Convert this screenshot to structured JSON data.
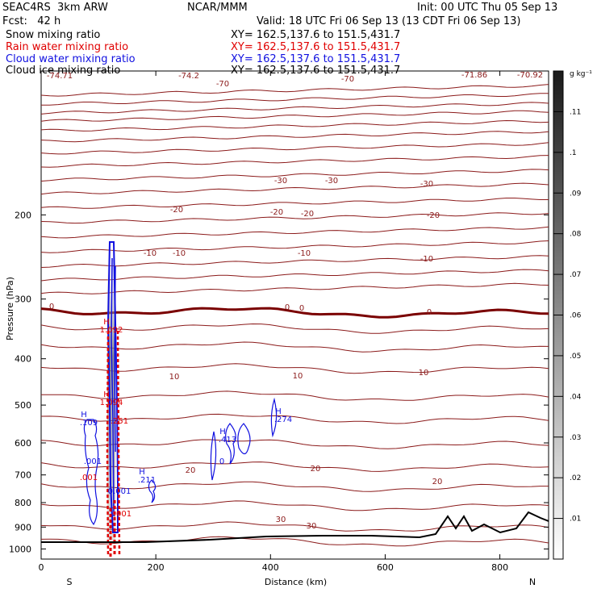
{
  "header": {
    "model": "SEAC4RS  3km ARW",
    "org": "NCAR/MMM",
    "init": "Init: 00 UTC Thu 05 Sep 13",
    "fcst": "Fcst:   42 h",
    "valid": "Valid: 18 UTC Fri 06 Sep 13 (13 CDT Fri 06 Sep 13)"
  },
  "fields": [
    {
      "label": "Snow mixing ratio",
      "xy": "XY= 162.5,137.6 to 151.5,431.7",
      "color": "#000000"
    },
    {
      "label": "Rain water mixing ratio",
      "xy": "XY= 162.5,137.6 to 151.5,431.7",
      "color": "#e00000"
    },
    {
      "label": "Cloud water mixing ratio",
      "xy": "XY= 162.5,137.6 to 151.5,431.7",
      "color": "#1010e0"
    },
    {
      "label": "Cloud ice mixing ratio",
      "xy": "XY= 162.5,137.6 to 151.5,431.7",
      "color": "#000000"
    }
  ],
  "chart_data": {
    "type": "contour cross-section",
    "xlabel": "Distance (km)",
    "ylabel": "Pressure (hPa)",
    "x_ticks": [
      0,
      200,
      400,
      600,
      800
    ],
    "y_ticks": [
      200,
      300,
      400,
      500,
      600,
      700,
      800,
      900,
      1000
    ],
    "xlim": [
      0,
      885
    ],
    "ylim": [
      1050,
      100
    ],
    "y_scale": "log",
    "endpoints": {
      "left": "S",
      "right": "N"
    },
    "colorbar": {
      "unit": "g kg⁻¹",
      "ticks": [
        ".01",
        ".02",
        ".03",
        ".04",
        ".05",
        ".06",
        ".07",
        ".08",
        ".09",
        ".1",
        ".11"
      ],
      "range": [
        0,
        0.12
      ]
    },
    "temperature_contours": [
      {
        "label": "-70",
        "values": [
          -70
        ]
      },
      {
        "label": "-30",
        "values": [
          -30
        ]
      },
      {
        "label": "-20",
        "values": [
          -20
        ]
      },
      {
        "label": "-10",
        "values": [
          -10
        ]
      },
      {
        "label": "0",
        "values": [
          0
        ]
      },
      {
        "label": "10",
        "values": [
          10
        ]
      },
      {
        "label": "20",
        "values": [
          20
        ]
      },
      {
        "label": "30",
        "values": [
          30
        ]
      }
    ],
    "contour_labels": [
      "-74.71",
      "-74.2",
      "-70",
      "-70",
      "-71.86",
      "-70.92",
      "-30",
      "-30",
      "-30",
      "-20",
      "-20",
      "-20",
      "-20",
      "-10",
      "-10",
      "-10",
      "-10",
      "0",
      "0",
      "0",
      "0",
      "10",
      "10",
      "10",
      "20",
      "20",
      "20",
      "30",
      "30"
    ],
    "extrema_labels": [
      {
        "text": "H",
        "value": "1.092",
        "color": "#e00000"
      },
      {
        "text": "H",
        "value": "1.094",
        "color": "#e00000"
      },
      {
        "text": "H",
        "value": ".109",
        "color": "#1010e0"
      },
      {
        "text": "H",
        "value": ".211",
        "color": "#1010e0"
      },
      {
        "text": "H",
        "value": ".413",
        "color": "#1010e0"
      },
      {
        "text": "H",
        "value": ".274",
        "color": "#1010e0"
      },
      {
        "text": "",
        "value": ".001",
        "color": "#1010e0"
      },
      {
        "text": "",
        "value": ".001",
        "color": "#e00000"
      },
      {
        "text": "",
        "value": "0.001",
        "color": "#1010e0"
      },
      {
        "text": "",
        "value": ".251",
        "color": "#e00000"
      },
      {
        "text": "",
        "value": ".001",
        "color": "#e00000"
      },
      {
        "text": "",
        "value": "0",
        "color": "#1010e0"
      }
    ]
  },
  "colors": {
    "isotherm": "#8b1a1a",
    "zero_isotherm": "#7a0000",
    "rain": "#e00000",
    "cloud_water": "#1010e0",
    "terrain": "#000000"
  }
}
